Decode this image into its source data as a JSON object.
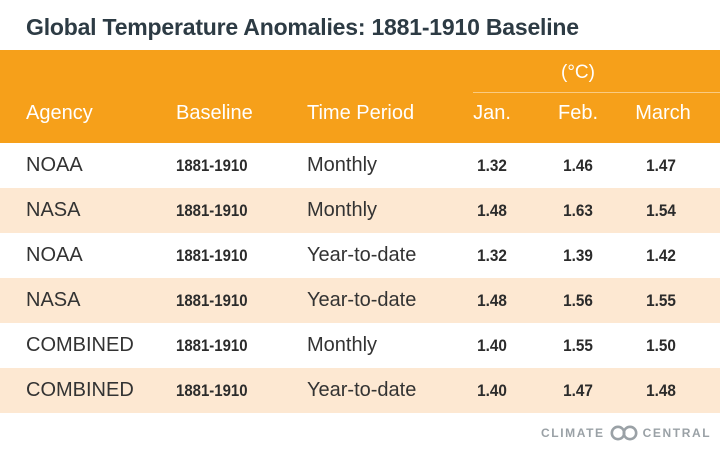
{
  "title": "Global Temperature Anomalies: 1881-1910 Baseline",
  "unit": "(°C)",
  "headers": {
    "agency": "Agency",
    "baseline": "Baseline",
    "period": "Time Period",
    "jan": "Jan.",
    "feb": "Feb.",
    "march": "March"
  },
  "rows": [
    {
      "agency": "NOAA",
      "baseline": "1881-1910",
      "period": "Monthly",
      "jan": "1.32",
      "feb": "1.46",
      "march": "1.47"
    },
    {
      "agency": "NASA",
      "baseline": "1881-1910",
      "period": "Monthly",
      "jan": "1.48",
      "feb": "1.63",
      "march": "1.54"
    },
    {
      "agency": "NOAA",
      "baseline": "1881-1910",
      "period": "Year-to-date",
      "jan": "1.32",
      "feb": "1.39",
      "march": "1.42"
    },
    {
      "agency": "NASA",
      "baseline": "1881-1910",
      "period": "Year-to-date",
      "jan": "1.48",
      "feb": "1.56",
      "march": "1.55"
    },
    {
      "agency": "COMBINED",
      "baseline": "1881-1910",
      "period": "Monthly",
      "jan": "1.40",
      "feb": "1.55",
      "march": "1.50"
    },
    {
      "agency": "COMBINED",
      "baseline": "1881-1910",
      "period": "Year-to-date",
      "jan": "1.40",
      "feb": "1.47",
      "march": "1.48"
    }
  ],
  "logo": {
    "left": "CLIMATE",
    "right": "CENTRAL"
  },
  "colors": {
    "header_bg": "#f6a01a",
    "alt_row_bg": "#fde8d2",
    "title": "#2d3b44"
  }
}
